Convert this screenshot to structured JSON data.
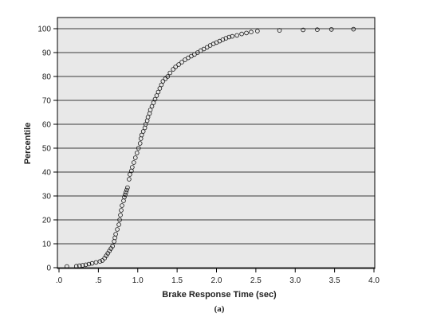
{
  "chart_data": {
    "type": "scatter",
    "title": "",
    "caption": "(a)",
    "xlabel": "Brake Response Time (sec)",
    "ylabel": "Percentile",
    "xlim": [
      0,
      4
    ],
    "ylim": [
      0,
      100
    ],
    "x_ticks": [
      0,
      0.5,
      1.0,
      1.5,
      2.0,
      2.5,
      3.0,
      3.5,
      4.0
    ],
    "x_tick_labels": [
      ".0",
      ".5",
      "1.0",
      "1.5",
      "2.0",
      "2.5",
      "3.0",
      "3.5",
      "4.0"
    ],
    "y_ticks": [
      0,
      10,
      20,
      30,
      40,
      50,
      60,
      70,
      80,
      90,
      100
    ],
    "y_tick_labels": [
      "0",
      "10",
      "20",
      "30",
      "40",
      "50",
      "60",
      "70",
      "80",
      "90",
      "100"
    ],
    "grid": "horizontal",
    "background": "#e8e8e8",
    "marker": "open-circle",
    "series": [
      {
        "points": [
          [
            0.1,
            0.5
          ],
          [
            0.22,
            0.6
          ],
          [
            0.26,
            0.8
          ],
          [
            0.3,
            1.0
          ],
          [
            0.34,
            1.2
          ],
          [
            0.38,
            1.5
          ],
          [
            0.42,
            1.8
          ],
          [
            0.47,
            2.2
          ],
          [
            0.52,
            2.6
          ],
          [
            0.55,
            3.0
          ],
          [
            0.58,
            4.0
          ],
          [
            0.6,
            5.0
          ],
          [
            0.62,
            6.0
          ],
          [
            0.64,
            7.0
          ],
          [
            0.66,
            8.0
          ],
          [
            0.68,
            9.0
          ],
          [
            0.7,
            11.0
          ],
          [
            0.71,
            12.5
          ],
          [
            0.72,
            14.0
          ],
          [
            0.74,
            16.0
          ],
          [
            0.76,
            18.0
          ],
          [
            0.77,
            20.0
          ],
          [
            0.78,
            22.0
          ],
          [
            0.79,
            24.0
          ],
          [
            0.8,
            26.0
          ],
          [
            0.82,
            28.0
          ],
          [
            0.83,
            29.5
          ],
          [
            0.84,
            30.5
          ],
          [
            0.85,
            31.5
          ],
          [
            0.86,
            32.5
          ],
          [
            0.87,
            33.5
          ],
          [
            0.89,
            37.0
          ],
          [
            0.9,
            39.0
          ],
          [
            0.92,
            40.5
          ],
          [
            0.93,
            42.0
          ],
          [
            0.95,
            44.0
          ],
          [
            0.97,
            46.0
          ],
          [
            0.99,
            48.0
          ],
          [
            1.01,
            50.0
          ],
          [
            1.03,
            52.0
          ],
          [
            1.04,
            54.0
          ],
          [
            1.05,
            55.5
          ],
          [
            1.07,
            57.0
          ],
          [
            1.09,
            58.5
          ],
          [
            1.1,
            60.0
          ],
          [
            1.12,
            61.5
          ],
          [
            1.13,
            63.0
          ],
          [
            1.15,
            64.5
          ],
          [
            1.16,
            66.0
          ],
          [
            1.18,
            67.5
          ],
          [
            1.2,
            69.0
          ],
          [
            1.22,
            70.5
          ],
          [
            1.24,
            72.0
          ],
          [
            1.26,
            73.5
          ],
          [
            1.28,
            75.0
          ],
          [
            1.3,
            76.5
          ],
          [
            1.32,
            78.0
          ],
          [
            1.35,
            79.0
          ],
          [
            1.38,
            80.0
          ],
          [
            1.41,
            81.5
          ],
          [
            1.45,
            83.0
          ],
          [
            1.48,
            84.0
          ],
          [
            1.52,
            85.0
          ],
          [
            1.56,
            86.0
          ],
          [
            1.6,
            87.0
          ],
          [
            1.64,
            87.8
          ],
          [
            1.68,
            88.5
          ],
          [
            1.72,
            89.2
          ],
          [
            1.76,
            90.0
          ],
          [
            1.8,
            90.8
          ],
          [
            1.84,
            91.5
          ],
          [
            1.88,
            92.2
          ],
          [
            1.92,
            93.0
          ],
          [
            1.96,
            93.6
          ],
          [
            2.0,
            94.2
          ],
          [
            2.04,
            94.8
          ],
          [
            2.08,
            95.4
          ],
          [
            2.12,
            96.0
          ],
          [
            2.16,
            96.5
          ],
          [
            2.2,
            96.8
          ],
          [
            2.26,
            97.2
          ],
          [
            2.32,
            97.8
          ],
          [
            2.38,
            98.2
          ],
          [
            2.44,
            98.6
          ],
          [
            2.52,
            99.0
          ],
          [
            2.8,
            99.3
          ],
          [
            3.1,
            99.5
          ],
          [
            3.28,
            99.6
          ],
          [
            3.46,
            99.7
          ],
          [
            3.74,
            99.8
          ]
        ]
      }
    ]
  }
}
